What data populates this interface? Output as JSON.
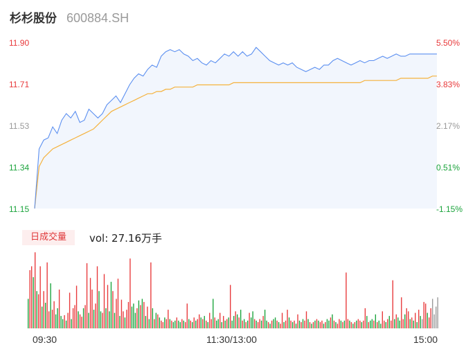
{
  "header": {
    "name": "杉杉股份",
    "code": "600884.SH"
  },
  "volume_panel": {
    "tag": "日成交量",
    "label": "vol: 27.16万手"
  },
  "colors": {
    "price_line": "#5b8ff0",
    "avg_line": "#f5b23d",
    "up": "#e8383a",
    "down": "#1aa33b",
    "neutral": "#999999",
    "area": "#f2f6fd"
  },
  "chart_data": [
    {
      "type": "line",
      "title": "",
      "x_ticks": [
        "09:30",
        "11:30/13:00",
        "15:00"
      ],
      "y_ticks_left": [
        "11.90",
        "11.71",
        "11.53",
        "11.34",
        "11.15"
      ],
      "y_ticks_right": [
        "5.50%",
        "3.83%",
        "2.17%",
        "0.51%",
        "-1.15%"
      ],
      "ylim": [
        11.15,
        11.9
      ],
      "series": [
        {
          "role": "price",
          "values": [
            11.15,
            11.42,
            11.46,
            11.47,
            11.52,
            11.49,
            11.55,
            11.58,
            11.56,
            11.59,
            11.54,
            11.55,
            11.6,
            11.58,
            11.56,
            11.58,
            11.62,
            11.64,
            11.66,
            11.63,
            11.67,
            11.71,
            11.74,
            11.76,
            11.75,
            11.78,
            11.8,
            11.79,
            11.84,
            11.86,
            11.87,
            11.86,
            11.87,
            11.85,
            11.84,
            11.82,
            11.83,
            11.81,
            11.8,
            11.82,
            11.81,
            11.83,
            11.85,
            11.84,
            11.86,
            11.84,
            11.86,
            11.84,
            11.85,
            11.88,
            11.86,
            11.84,
            11.82,
            11.81,
            11.8,
            11.81,
            11.8,
            11.81,
            11.79,
            11.78,
            11.77,
            11.78,
            11.79,
            11.78,
            11.8,
            11.8,
            11.82,
            11.83,
            11.82,
            11.81,
            11.8,
            11.81,
            11.82,
            11.81,
            11.82,
            11.82,
            11.83,
            11.84,
            11.83,
            11.84,
            11.85,
            11.84,
            11.84,
            11.85,
            11.85,
            11.85,
            11.85,
            11.85,
            11.85,
            11.85
          ],
          "color": "#5b8ff0"
        },
        {
          "role": "average",
          "values": [
            11.15,
            11.34,
            11.38,
            11.4,
            11.42,
            11.43,
            11.44,
            11.45,
            11.46,
            11.47,
            11.48,
            11.49,
            11.5,
            11.51,
            11.53,
            11.55,
            11.57,
            11.59,
            11.6,
            11.61,
            11.62,
            11.63,
            11.64,
            11.65,
            11.66,
            11.67,
            11.67,
            11.68,
            11.68,
            11.69,
            11.69,
            11.7,
            11.7,
            11.7,
            11.7,
            11.7,
            11.71,
            11.71,
            11.71,
            11.71,
            11.71,
            11.71,
            11.71,
            11.71,
            11.72,
            11.72,
            11.72,
            11.72,
            11.72,
            11.72,
            11.72,
            11.72,
            11.72,
            11.72,
            11.72,
            11.72,
            11.72,
            11.72,
            11.72,
            11.72,
            11.72,
            11.72,
            11.72,
            11.72,
            11.72,
            11.72,
            11.72,
            11.72,
            11.72,
            11.72,
            11.72,
            11.72,
            11.72,
            11.73,
            11.73,
            11.73,
            11.73,
            11.73,
            11.73,
            11.73,
            11.73,
            11.74,
            11.74,
            11.74,
            11.74,
            11.74,
            11.74,
            11.74,
            11.75,
            11.75
          ],
          "color": "#f5b23d"
        }
      ]
    },
    {
      "type": "bar",
      "title": "",
      "ylim": [
        0,
        1
      ],
      "values": [
        0.38,
        0.75,
        0.8,
        0.66,
        0.98,
        0.48,
        0.44,
        0.8,
        0.28,
        0.48,
        0.33,
        0.85,
        0.22,
        0.58,
        0.24,
        0.35,
        0.18,
        0.26,
        0.5,
        0.16,
        0.12,
        0.17,
        0.1,
        0.2,
        0.46,
        0.12,
        0.26,
        0.3,
        0.55,
        0.22,
        0.18,
        0.15,
        0.26,
        0.3,
        0.84,
        0.2,
        0.65,
        0.5,
        0.24,
        0.32,
        0.8,
        0.48,
        0.22,
        0.2,
        0.7,
        0.26,
        0.56,
        0.22,
        0.6,
        0.48,
        0.2,
        0.38,
        0.64,
        0.16,
        0.37,
        0.22,
        0.14,
        0.24,
        0.34,
        0.9,
        0.28,
        0.32,
        0.2,
        0.26,
        0.36,
        0.3,
        0.38,
        0.34,
        0.16,
        0.28,
        0.12,
        0.85,
        0.26,
        0.12,
        0.2,
        0.18,
        0.14,
        0.1,
        0.08,
        0.14,
        0.12,
        0.24,
        0.12,
        0.1,
        0.08,
        0.1,
        0.14,
        0.1,
        0.08,
        0.12,
        0.1,
        0.08,
        0.32,
        0.12,
        0.1,
        0.08,
        0.14,
        0.1,
        0.12,
        0.18,
        0.14,
        0.12,
        0.16,
        0.1,
        0.08,
        0.2,
        0.12,
        0.38,
        0.14,
        0.1,
        0.12,
        0.2,
        0.08,
        0.16,
        0.1,
        0.12,
        0.14,
        0.56,
        0.1,
        0.16,
        0.22,
        0.18,
        0.14,
        0.24,
        0.1,
        0.12,
        0.08,
        0.1,
        0.2,
        0.14,
        0.22,
        0.12,
        0.1,
        0.08,
        0.12,
        0.1,
        0.16,
        0.24,
        0.1,
        0.08,
        0.06,
        0.1,
        0.12,
        0.14,
        0.1,
        0.08,
        0.06,
        0.2,
        0.08,
        0.1,
        0.24,
        0.14,
        0.1,
        0.08,
        0.1,
        0.06,
        0.18,
        0.1,
        0.08,
        0.12,
        0.1,
        0.22,
        0.12,
        0.08,
        0.06,
        0.08,
        0.1,
        0.12,
        0.1,
        0.08,
        0.1,
        0.06,
        0.08,
        0.12,
        0.1,
        0.14,
        0.18,
        0.1,
        0.08,
        0.06,
        0.12,
        0.1,
        0.08,
        0.1,
        0.72,
        0.12,
        0.1,
        0.08,
        0.06,
        0.08,
        0.1,
        0.12,
        0.1,
        0.08,
        0.1,
        0.26,
        0.16,
        0.08,
        0.1,
        0.12,
        0.1,
        0.18,
        0.08,
        0.1,
        0.06,
        0.22,
        0.1,
        0.08,
        0.12,
        0.16,
        0.1,
        0.62,
        0.12,
        0.18,
        0.14,
        0.1,
        0.4,
        0.12,
        0.18,
        0.26,
        0.22,
        0.12,
        0.14,
        0.1,
        0.2,
        0.08,
        0.24,
        0.16,
        0.12,
        0.34,
        0.32,
        0.2,
        0.14,
        0.26,
        0.38,
        0.18,
        0.28,
        0.4
      ],
      "colors": [
        "down",
        "up",
        "up",
        "down",
        "up",
        "down",
        "up",
        "up",
        "down",
        "up",
        "down",
        "up",
        "up",
        "down",
        "up",
        "up",
        "down",
        "down",
        "up",
        "down",
        "down",
        "up",
        "down",
        "up",
        "up",
        "down",
        "up",
        "up",
        "up",
        "down",
        "up",
        "up",
        "down",
        "up",
        "up",
        "down",
        "up",
        "up",
        "down",
        "up",
        "up",
        "down",
        "down",
        "up",
        "up",
        "down",
        "up",
        "down",
        "down",
        "up",
        "down",
        "up",
        "up",
        "down",
        "up",
        "up",
        "down",
        "up",
        "up",
        "up",
        "down",
        "down",
        "down",
        "up",
        "down",
        "up",
        "down",
        "up",
        "down",
        "up",
        "down",
        "up",
        "down",
        "up",
        "down",
        "up",
        "down",
        "up",
        "up",
        "down",
        "up",
        "up",
        "down",
        "up",
        "down",
        "down",
        "up",
        "down",
        "down",
        "up",
        "down",
        "up",
        "up",
        "down",
        "up",
        "down",
        "up",
        "down",
        "up",
        "up",
        "down",
        "up",
        "down",
        "up",
        "down",
        "up",
        "up",
        "down",
        "up",
        "down",
        "down",
        "up",
        "down",
        "up",
        "down",
        "up",
        "down",
        "up",
        "down",
        "down",
        "up",
        "down",
        "up",
        "down",
        "up",
        "down",
        "up",
        "down",
        "up",
        "down",
        "down",
        "up",
        "down",
        "up",
        "up",
        "down",
        "up",
        "down",
        "down",
        "up",
        "down",
        "up",
        "down",
        "down",
        "up",
        "down",
        "up",
        "up",
        "down",
        "up",
        "up",
        "down",
        "up",
        "down",
        "up",
        "down",
        "up",
        "down",
        "up",
        "down",
        "up",
        "up",
        "down",
        "up",
        "down",
        "up",
        "down",
        "up",
        "down",
        "up",
        "up",
        "down",
        "up",
        "down",
        "down",
        "up",
        "down",
        "up",
        "down",
        "up",
        "up",
        "down",
        "up",
        "down",
        "up",
        "up",
        "down",
        "up",
        "down",
        "up",
        "down",
        "up",
        "up",
        "down",
        "up",
        "up",
        "down",
        "up",
        "down",
        "down",
        "up",
        "down",
        "up",
        "down",
        "down",
        "up",
        "up",
        "down",
        "up",
        "down",
        "up",
        "up",
        "down",
        "up",
        "down",
        "down",
        "up",
        "up",
        "down",
        "up",
        "up",
        "down",
        "up",
        "down",
        "up",
        "down",
        "up",
        "down",
        "neutral",
        "up",
        "up",
        "down",
        "up",
        "up",
        "neutral"
      ]
    }
  ]
}
